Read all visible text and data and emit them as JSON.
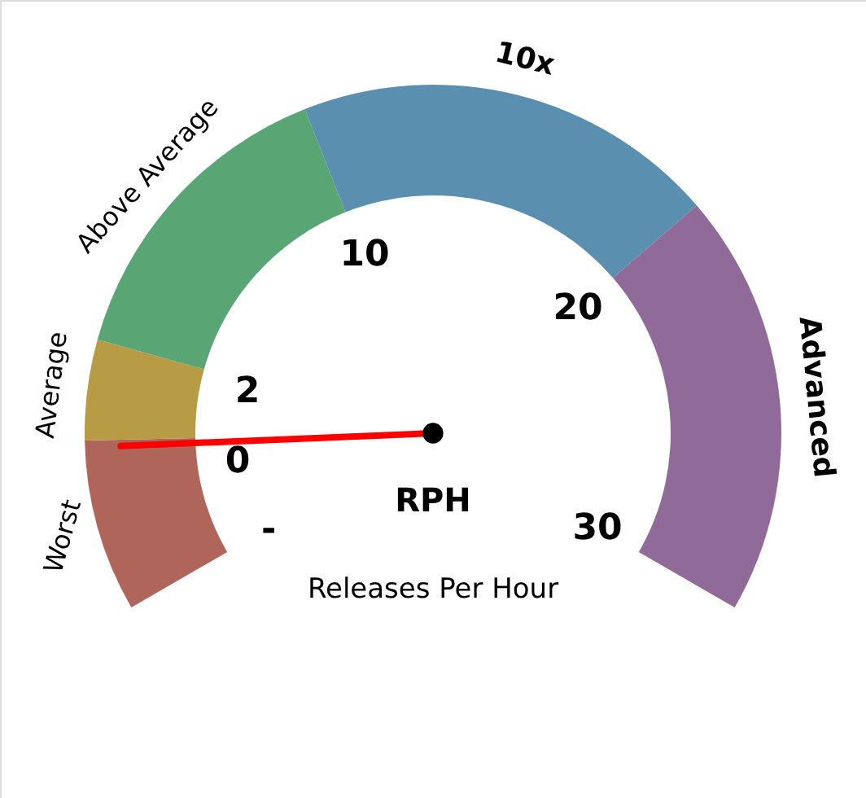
{
  "chart_data": {
    "type": "donut",
    "categories": [
      "Worst",
      "Average",
      "Above Average",
      "10x",
      "Advanced"
    ],
    "values": [
      12,
      7,
      22,
      29.5,
      29.5
    ],
    "colors": [
      "#b0655a",
      "#b89c45",
      "#5aa574",
      "#5b8fb0",
      "#906b9a"
    ],
    "needle": "Worst",
    "annotations": [
      "-",
      "0",
      "2",
      "10",
      "20",
      "30",
      "RPH",
      "Releases Per Hour"
    ]
  }
}
